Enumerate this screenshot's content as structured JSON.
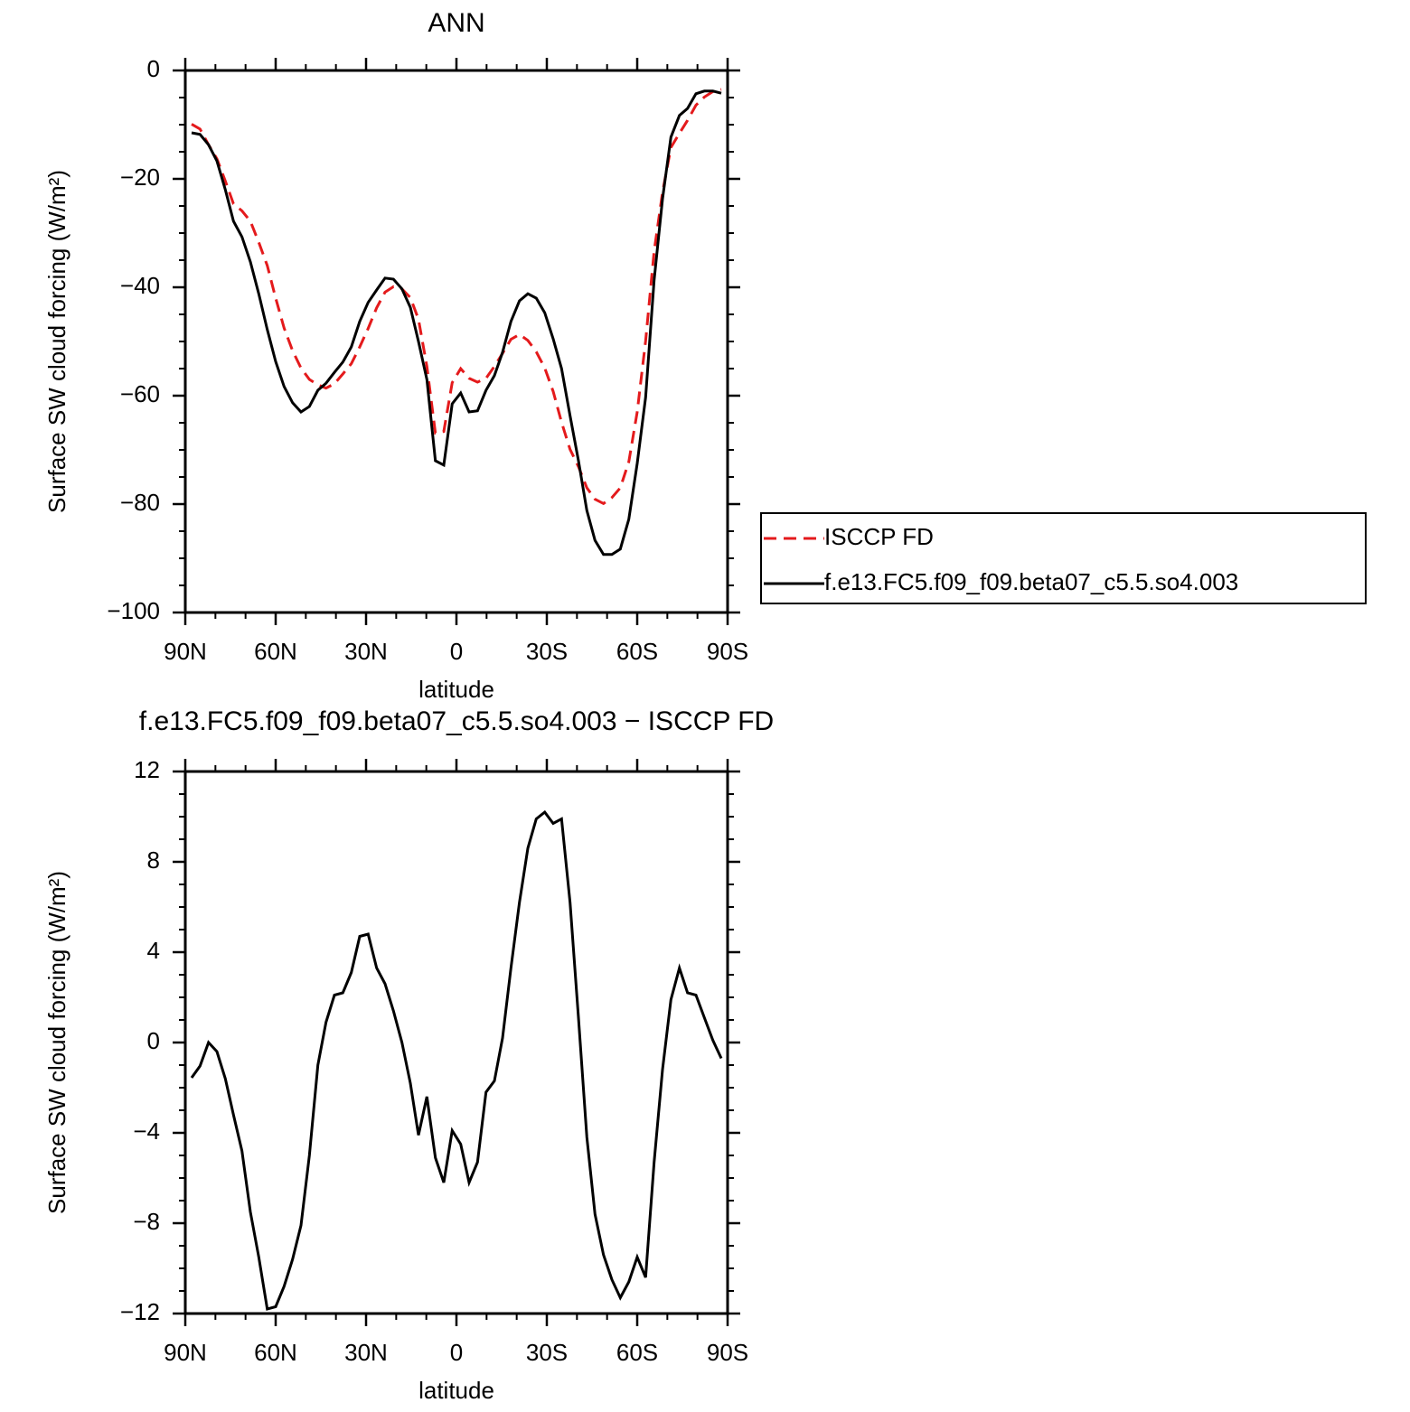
{
  "chart_data": [
    {
      "type": "line",
      "title": "ANN",
      "xlabel": "latitude",
      "ylabel": "Surface SW cloud forcing (W/m²)",
      "x": [
        87.9,
        85.1,
        82.3,
        79.5,
        76.7,
        74.0,
        71.2,
        68.4,
        65.6,
        62.8,
        60.0,
        57.2,
        54.4,
        51.6,
        48.8,
        46.0,
        43.3,
        40.5,
        37.7,
        34.9,
        32.1,
        29.3,
        26.5,
        23.7,
        20.9,
        18.1,
        15.3,
        12.6,
        9.8,
        7.0,
        4.2,
        1.4,
        -1.4,
        -4.2,
        -7.0,
        -9.8,
        -12.6,
        -15.3,
        -18.1,
        -20.9,
        -23.7,
        -26.5,
        -29.3,
        -32.1,
        -34.9,
        -37.7,
        -40.5,
        -43.3,
        -46.0,
        -48.8,
        -51.6,
        -54.4,
        -57.2,
        -60.0,
        -62.8,
        -65.6,
        -68.4,
        -71.2,
        -74.0,
        -76.7,
        -79.5,
        -82.3,
        -85.1,
        -87.9
      ],
      "series": [
        {
          "name": "ISCCP FD",
          "color": "#e41a1c",
          "linestyle": "dashed",
          "values": [
            -9.9,
            -10.8,
            -13.7,
            -16.3,
            -20.4,
            -24.6,
            -25.9,
            -27.8,
            -31.7,
            -36.0,
            -42.0,
            -47.5,
            -51.7,
            -54.9,
            -57.0,
            -58.0,
            -58.6,
            -57.8,
            -56.0,
            -54.1,
            -51.0,
            -47.6,
            -43.8,
            -40.9,
            -39.9,
            -40.3,
            -41.9,
            -45.9,
            -54.6,
            -66.9,
            -66.6,
            -57.6,
            -55.0,
            -56.8,
            -57.5,
            -56.8,
            -54.6,
            -52.2,
            -49.6,
            -48.7,
            -49.8,
            -51.9,
            -54.9,
            -59.2,
            -64.9,
            -69.9,
            -73.1,
            -77.0,
            -79.1,
            -79.9,
            -78.8,
            -77.0,
            -72.2,
            -63.0,
            -49.9,
            -33.4,
            -22.5,
            -14.2,
            -11.6,
            -9.2,
            -6.4,
            -4.9,
            -3.9,
            -3.5
          ]
        },
        {
          "name": "f.e13.FC5.f09_f09.beta07_c5.5.so4.003",
          "color": "#000000",
          "linestyle": "solid",
          "values": [
            -11.5,
            -11.8,
            -13.7,
            -16.7,
            -22,
            -27.8,
            -30.7,
            -35.3,
            -41.2,
            -47.8,
            -53.7,
            -58.3,
            -61.3,
            -63,
            -62,
            -59,
            -57.7,
            -55.7,
            -53.8,
            -51,
            -46.3,
            -42.8,
            -40.5,
            -38.3,
            -38.5,
            -40.3,
            -43.7,
            -50,
            -57,
            -72,
            -72.8,
            -61.5,
            -59.5,
            -63,
            -62.8,
            -59,
            -56.3,
            -52,
            -46.3,
            -42.5,
            -41.2,
            -42,
            -44.7,
            -49.5,
            -55,
            -63.7,
            -72,
            -81.2,
            -86.7,
            -89.3,
            -89.3,
            -88.3,
            -82.8,
            -72.5,
            -60.3,
            -38.7,
            -23.7,
            -12.3,
            -8.3,
            -7,
            -4.3,
            -3.8,
            -3.8,
            -4.2
          ]
        }
      ],
      "xlim": [
        90,
        -90
      ],
      "xticks": [
        {
          "value": 90,
          "label": "90N"
        },
        {
          "value": 60,
          "label": "60N"
        },
        {
          "value": 30,
          "label": "30N"
        },
        0,
        {
          "value": -30,
          "label": "30S"
        },
        {
          "value": -60,
          "label": "60S"
        },
        {
          "value": -90,
          "label": "90S"
        }
      ],
      "ylim": [
        -100,
        0
      ],
      "yticks": [
        0,
        {
          "value": -20,
          "label": "−20"
        },
        {
          "value": -40,
          "label": "−40"
        },
        {
          "value": -60,
          "label": "−60"
        },
        {
          "value": -80,
          "label": "−80"
        },
        {
          "value": -100,
          "label": "−100"
        }
      ],
      "legend": "right"
    },
    {
      "type": "line",
      "title": "f.e13.FC5.f09_f09.beta07_c5.5.so4.003 − ISCCP FD",
      "xlabel": "latitude",
      "ylabel": "Surface SW cloud forcing (W/m²)",
      "x": [
        87.9,
        85.1,
        82.3,
        79.5,
        76.7,
        74.0,
        71.2,
        68.4,
        65.6,
        62.8,
        60.0,
        57.2,
        54.4,
        51.6,
        48.8,
        46.0,
        43.3,
        40.5,
        37.7,
        34.9,
        32.1,
        29.3,
        26.5,
        23.7,
        20.9,
        18.1,
        15.3,
        12.6,
        9.8,
        7.0,
        4.2,
        1.4,
        -1.4,
        -4.2,
        -7.0,
        -9.8,
        -12.6,
        -15.3,
        -18.1,
        -20.9,
        -23.7,
        -26.5,
        -29.3,
        -32.1,
        -34.9,
        -37.7,
        -40.5,
        -43.3,
        -46.0,
        -48.8,
        -51.6,
        -54.4,
        -57.2,
        -60.0,
        -62.8,
        -65.6,
        -68.4,
        -71.2,
        -74.0,
        -76.7,
        -79.5,
        -82.3,
        -85.1,
        -87.9
      ],
      "series": [
        {
          "color": "#000000",
          "linestyle": "solid",
          "values": [
            -1.56,
            -1.04,
            0,
            -0.4,
            -1.6,
            -3.2,
            -4.8,
            -7.5,
            -9.5,
            -11.8,
            -11.7,
            -10.8,
            -9.6,
            -8.1,
            -5,
            -1,
            0.9,
            2.1,
            2.2,
            3.1,
            4.7,
            4.8,
            3.3,
            2.6,
            1.4,
            0,
            -1.8,
            -4.1,
            -2.4,
            -5.1,
            -6.2,
            -3.9,
            -4.5,
            -6.2,
            -5.3,
            -2.2,
            -1.7,
            0.2,
            3.3,
            6.2,
            8.6,
            9.9,
            10.2,
            9.7,
            9.9,
            6.2,
            1.1,
            -4.2,
            -7.6,
            -9.4,
            -10.5,
            -11.3,
            -10.6,
            -9.5,
            -10.4,
            -5.3,
            -1.2,
            1.9,
            3.3,
            2.2,
            2.1,
            1.1,
            0.1,
            -0.7
          ]
        }
      ],
      "xlim": [
        90,
        -90
      ],
      "xticks": [
        {
          "value": 90,
          "label": "90N"
        },
        {
          "value": 60,
          "label": "60N"
        },
        {
          "value": 30,
          "label": "30N"
        },
        0,
        {
          "value": -30,
          "label": "30S"
        },
        {
          "value": -60,
          "label": "60S"
        },
        {
          "value": -90,
          "label": "90S"
        }
      ],
      "ylim": [
        -12,
        12
      ],
      "yticks": [
        12,
        8,
        4,
        0,
        {
          "value": -4,
          "label": "−4"
        },
        {
          "value": -8,
          "label": "−8"
        },
        {
          "value": -12,
          "label": "−12"
        }
      ]
    }
  ]
}
